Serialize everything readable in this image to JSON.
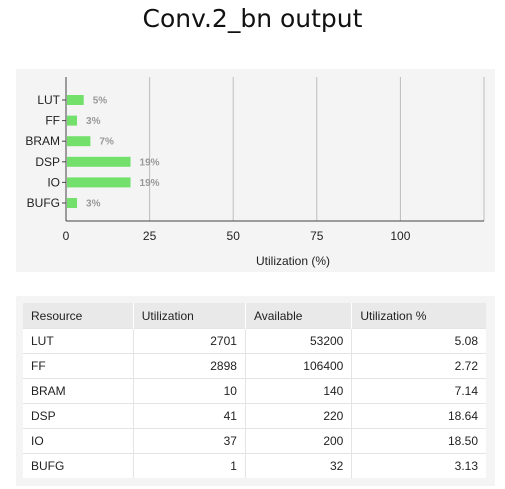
{
  "page": {
    "title": "Conv.2_bn output"
  },
  "chart_data": {
    "type": "bar",
    "orientation": "horizontal",
    "categories": [
      "LUT",
      "FF",
      "BRAM",
      "DSP",
      "IO",
      "BUFG"
    ],
    "values": [
      5,
      3,
      7,
      19,
      19,
      3
    ],
    "data_labels": [
      "5%",
      "3%",
      "7%",
      "19%",
      "19%",
      "3%"
    ],
    "xlabel": "Utilization (%)",
    "ylabel": "",
    "xlim": [
      0,
      125
    ],
    "xticks": [
      0,
      25,
      50,
      75,
      100
    ],
    "grid": "vertical",
    "bar_color": "#74e06c",
    "label_color": "#999999"
  },
  "table": {
    "headers": [
      "Resource",
      "Utilization",
      "Available",
      "Utilization %"
    ],
    "rows": [
      [
        "LUT",
        "2701",
        "53200",
        "5.08"
      ],
      [
        "FF",
        "2898",
        "106400",
        "2.72"
      ],
      [
        "BRAM",
        "10",
        "140",
        "7.14"
      ],
      [
        "DSP",
        "41",
        "220",
        "18.64"
      ],
      [
        "IO",
        "37",
        "200",
        "18.50"
      ],
      [
        "BUFG",
        "1",
        "32",
        "3.13"
      ]
    ]
  }
}
